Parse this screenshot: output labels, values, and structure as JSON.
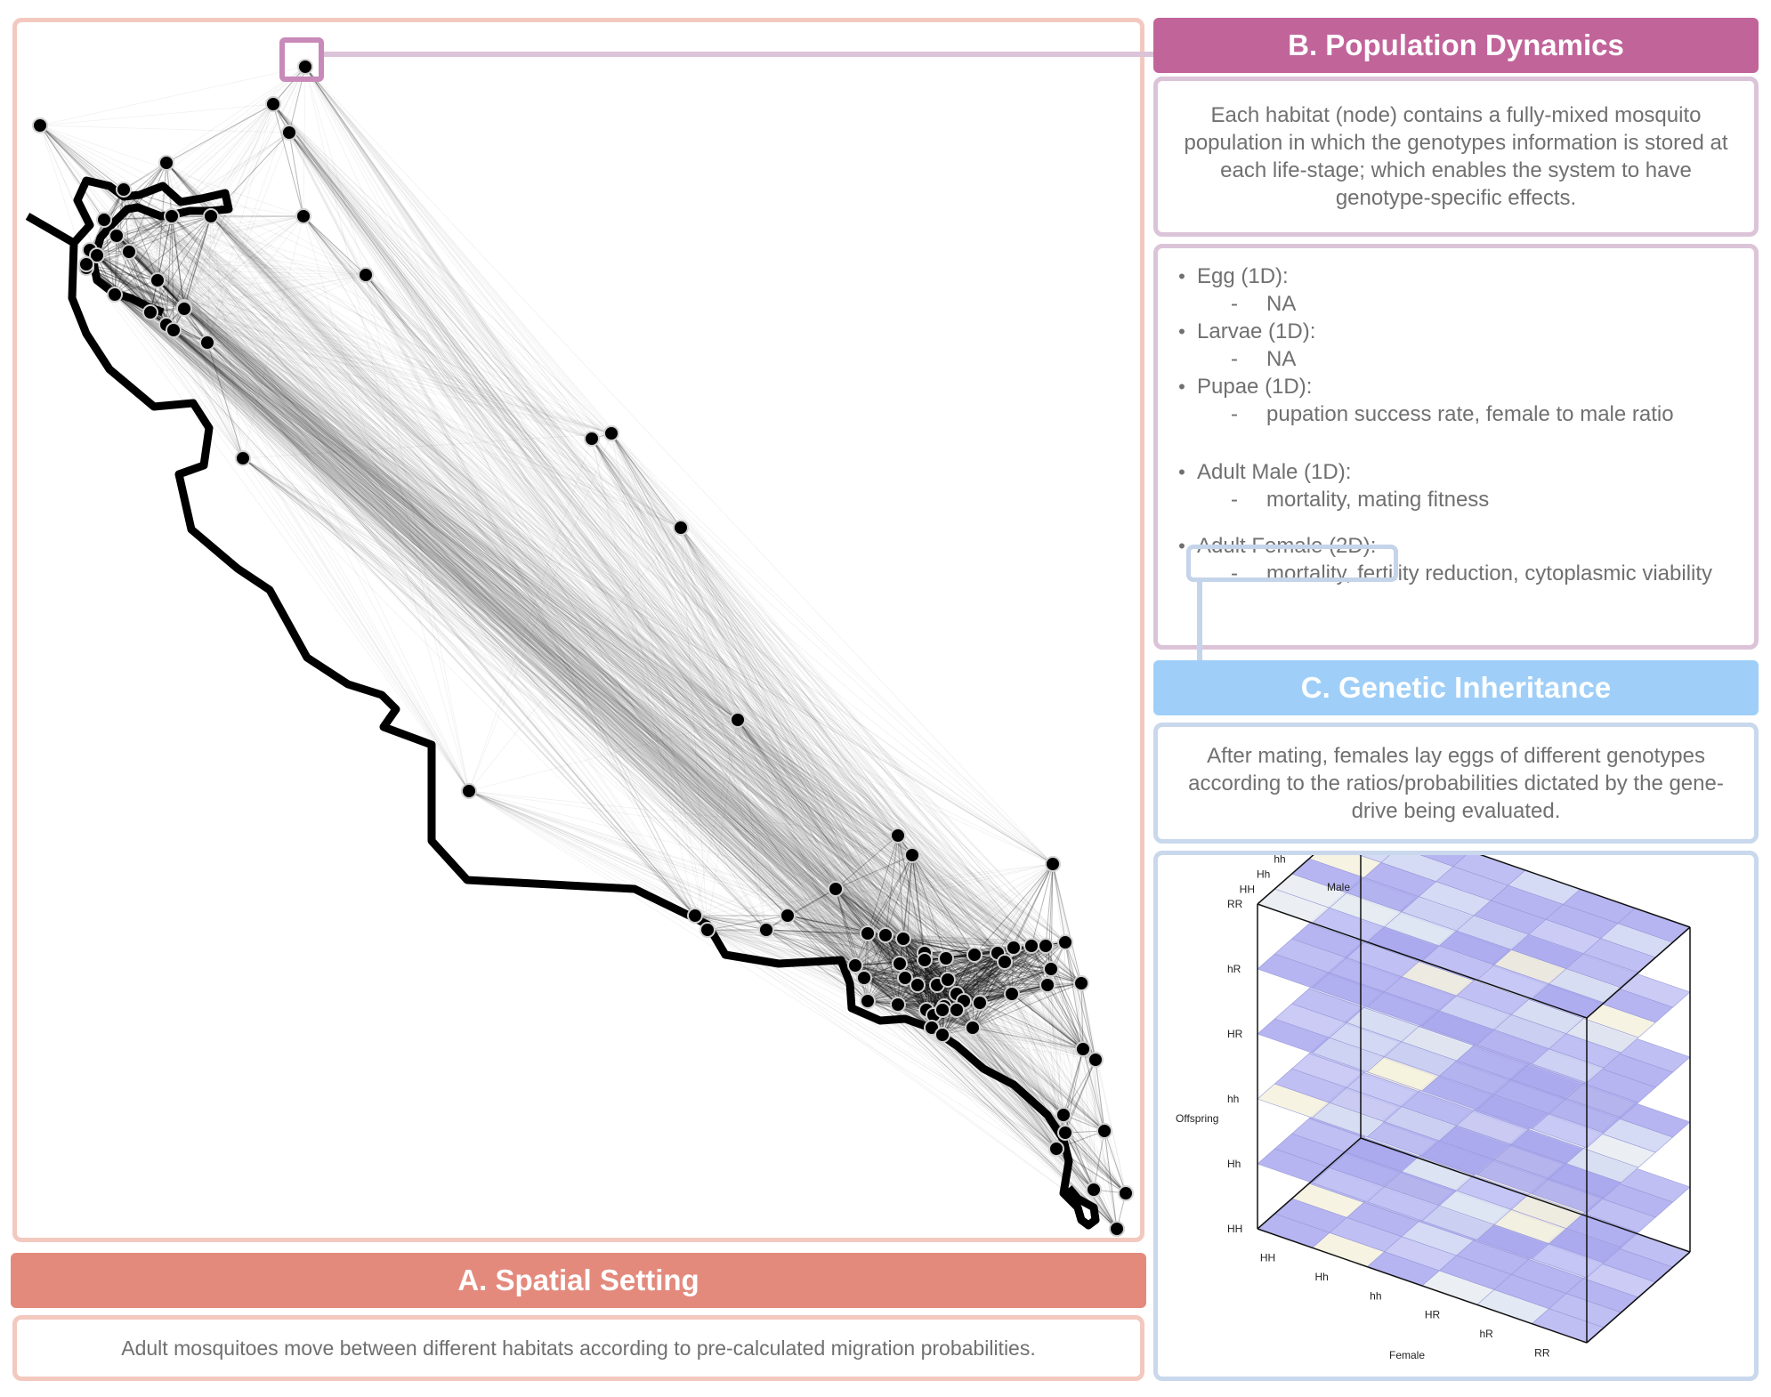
{
  "panel_a": {
    "header": "A. Spatial Setting",
    "description": "Adult mosquitoes move between different habitats according to pre-calculated migration probabilities."
  },
  "panel_b": {
    "header": "B. Population Dynamics",
    "description": "Each habitat (node) contains a fully-mixed mosquito population in which the genotypes information is stored at each life-stage; which enables the system to have genotype-specific effects.",
    "stages": [
      {
        "label": "Egg (1D):",
        "detail": "NA"
      },
      {
        "label": "Larvae (1D):",
        "detail": "NA"
      },
      {
        "label": "Pupae (1D):",
        "detail": "pupation success rate, female to male ratio"
      },
      {
        "label": "Adult Male (1D):",
        "detail": "mortality, mating fitness"
      },
      {
        "label": "Adult Female (2D):",
        "detail": "mortality, fertility reduction, cytoplasmic viability"
      }
    ]
  },
  "panel_c": {
    "header": "C. Genetic Inheritance",
    "description": "After mating, females lay eggs of different genotypes according to the ratios/probabilities dictated by the gene-drive being evaluated.",
    "cube": {
      "x_axis_label": "Female",
      "y_axis_label": "Male",
      "z_axis_label": "Offspring",
      "genotypes": [
        "HH",
        "Hh",
        "hh",
        "HR",
        "hR",
        "RR"
      ]
    }
  },
  "colors": {
    "panel_a_header": "#e38a7d",
    "panel_b_header": "#c1649a",
    "panel_c_header": "#9fcff8",
    "node": "#000000",
    "coastline": "#000000"
  }
}
